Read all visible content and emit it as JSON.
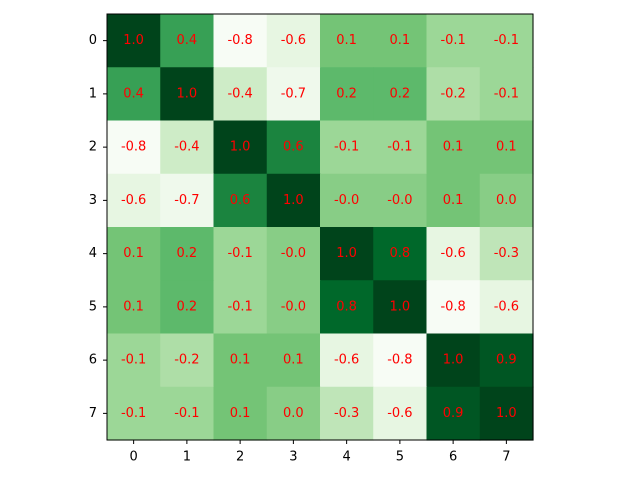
{
  "chart_data": {
    "type": "heatmap",
    "title": "",
    "xlabel": "",
    "ylabel": "",
    "x_categories": [
      "0",
      "1",
      "2",
      "3",
      "4",
      "5",
      "6",
      "7"
    ],
    "y_categories": [
      "0",
      "1",
      "2",
      "3",
      "4",
      "5",
      "6",
      "7"
    ],
    "values": [
      [
        1.0,
        0.4,
        -0.8,
        -0.6,
        0.1,
        0.1,
        -0.1,
        -0.1
      ],
      [
        0.4,
        1.0,
        -0.4,
        -0.7,
        0.2,
        0.2,
        -0.2,
        -0.1
      ],
      [
        -0.8,
        -0.4,
        1.0,
        0.6,
        -0.1,
        -0.1,
        0.1,
        0.1
      ],
      [
        -0.6,
        -0.7,
        0.6,
        1.0,
        -0.0,
        -0.0,
        0.1,
        0.0
      ],
      [
        0.1,
        0.2,
        -0.1,
        -0.0,
        1.0,
        0.8,
        -0.6,
        -0.3
      ],
      [
        0.1,
        0.2,
        -0.1,
        -0.0,
        0.8,
        1.0,
        -0.8,
        -0.6
      ],
      [
        -0.1,
        -0.2,
        0.1,
        0.1,
        -0.6,
        -0.8,
        1.0,
        0.9
      ],
      [
        -0.1,
        -0.1,
        0.1,
        0.0,
        -0.3,
        -0.6,
        0.9,
        1.0
      ]
    ],
    "labels": [
      [
        "1.0",
        "0.4",
        "-0.8",
        "-0.6",
        "0.1",
        "0.1",
        "-0.1",
        "-0.1"
      ],
      [
        "0.4",
        "1.0",
        "-0.4",
        "-0.7",
        "0.2",
        "0.2",
        "-0.2",
        "-0.1"
      ],
      [
        "-0.8",
        "-0.4",
        "1.0",
        "0.6",
        "-0.1",
        "-0.1",
        "0.1",
        "0.1"
      ],
      [
        "-0.6",
        "-0.7",
        "0.6",
        "1.0",
        "-0.0",
        "-0.0",
        "0.1",
        "0.0"
      ],
      [
        "0.1",
        "0.2",
        "-0.1",
        "-0.0",
        "1.0",
        "0.8",
        "-0.6",
        "-0.3"
      ],
      [
        "0.1",
        "0.2",
        "-0.1",
        "-0.0",
        "0.8",
        "1.0",
        "-0.8",
        "-0.6"
      ],
      [
        "-0.1",
        "-0.2",
        "0.1",
        "0.1",
        "-0.6",
        "-0.8",
        "1.0",
        "0.9"
      ],
      [
        "-0.1",
        "-0.1",
        "0.1",
        "0.0",
        "-0.3",
        "-0.6",
        "0.9",
        "1.0"
      ]
    ],
    "colormap": "Greens",
    "vmin": -0.8,
    "vmax": 1.0,
    "annotation_color": "#ff0000",
    "grid": false,
    "legend": "none"
  }
}
